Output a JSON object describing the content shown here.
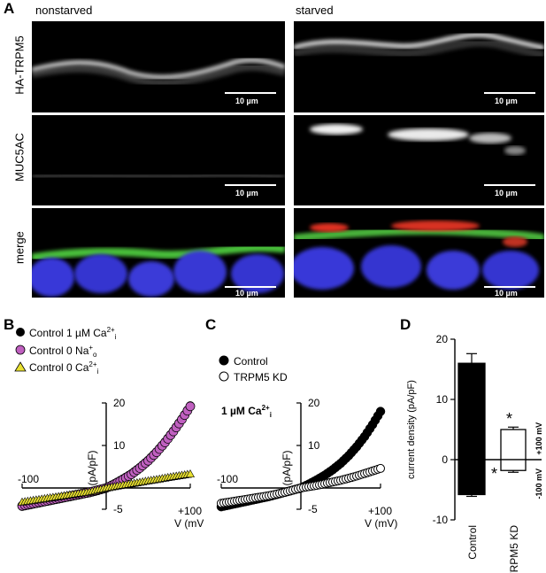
{
  "panel_A": {
    "letter": "A",
    "columns": [
      "nonstarved",
      "starved"
    ],
    "rows": [
      "HA-TRPM5",
      "MUC5AC",
      "merge"
    ],
    "scale_label": "10 µm"
  },
  "panel_B": {
    "letter": "B",
    "legend": [
      {
        "label": "Control 1 µM Ca",
        "sup": "2+",
        "sub": "i",
        "marker": "filled-black-circle",
        "color": "#000000"
      },
      {
        "label": "Control 0 Na",
        "sup": "+",
        "sub": "o",
        "marker": "magenta-circle",
        "color": "#c060c0"
      },
      {
        "label": "Control 0 Ca",
        "sup": "2+",
        "sub": "i",
        "marker": "yellow-triangle",
        "color": "#e8e030"
      }
    ],
    "ylabel": "I (pA/pF)",
    "xlabel": "V (mV)",
    "xmin_label": "-100",
    "xmax_label": "+100",
    "yticks": [
      "20",
      "10",
      "-5"
    ]
  },
  "panel_C": {
    "letter": "C",
    "legend": [
      {
        "label": "Control",
        "marker": "filled-black-circle"
      },
      {
        "label": "TRPM5 KD",
        "marker": "open-circle"
      }
    ],
    "annotation": "1 µM Ca",
    "annotation_sup": "2+",
    "annotation_sub": "i",
    "ylabel": "I (pA/pF)",
    "xlabel": "V (mV)",
    "xmin_label": "-100",
    "xmax_label": "+100",
    "yticks": [
      "20",
      "10",
      "-5"
    ]
  },
  "panel_D": {
    "letter": "D",
    "ylabel": "current density (pA/pF)",
    "yticks": [
      "20",
      "10",
      "0",
      "-10"
    ],
    "side_labels": [
      "+100 mV",
      "-100 mV"
    ],
    "star": "*"
  },
  "chart_data": [
    {
      "type": "scatter",
      "xlim": [
        -100,
        100
      ],
      "ylim": [
        -5,
        20
      ],
      "series": [
        {
          "name": "Control 1 µM Ca2+i",
          "x": [
            -100,
            -90,
            -80,
            -70,
            -60,
            -50,
            -40,
            -30,
            -20,
            -10,
            0,
            10,
            20,
            30,
            40,
            50,
            60,
            70,
            80,
            90,
            100
          ],
          "y": [
            -4.3,
            -3.9,
            -3.5,
            -3.1,
            -2.7,
            -2.3,
            -1.9,
            -1.5,
            -1.1,
            -0.6,
            0,
            1,
            2.1,
            3.3,
            4.8,
            6.5,
            8.5,
            10.8,
            13.4,
            16.2,
            19.3
          ]
        },
        {
          "name": "Control 0 Na+o",
          "x": [
            -100,
            -90,
            -80,
            -70,
            -60,
            -50,
            -40,
            -30,
            -20,
            -10,
            0,
            10,
            20,
            30,
            40,
            50,
            60,
            70,
            80,
            90,
            100
          ],
          "y": [
            -4.2,
            -3.8,
            -3.4,
            -3.0,
            -2.6,
            -2.2,
            -1.8,
            -1.4,
            -1.0,
            -0.5,
            0,
            0.9,
            2,
            3.2,
            4.7,
            6.4,
            8.4,
            10.7,
            13.3,
            16.1,
            19.2
          ]
        },
        {
          "name": "Control 0 Ca2+i",
          "x": [
            -100,
            -90,
            -80,
            -70,
            -60,
            -50,
            -40,
            -30,
            -20,
            -10,
            0,
            10,
            20,
            30,
            40,
            50,
            60,
            70,
            80,
            90,
            100
          ],
          "y": [
            -3.3,
            -3.0,
            -2.7,
            -2.4,
            -2.1,
            -1.8,
            -1.5,
            -1.2,
            -0.9,
            -0.45,
            0,
            0.35,
            0.7,
            1.0,
            1.35,
            1.7,
            2.0,
            2.35,
            2.7,
            3.0,
            3.3
          ]
        }
      ]
    },
    {
      "type": "scatter",
      "xlim": [
        -100,
        100
      ],
      "ylim": [
        -5,
        20
      ],
      "series": [
        {
          "name": "Control",
          "x": [
            -100,
            -90,
            -80,
            -70,
            -60,
            -50,
            -40,
            -30,
            -20,
            -10,
            0,
            10,
            20,
            30,
            40,
            50,
            60,
            70,
            80,
            90,
            100
          ],
          "y": [
            -4.4,
            -4.0,
            -3.6,
            -3.2,
            -2.8,
            -2.4,
            -2.0,
            -1.5,
            -1.0,
            -0.5,
            0,
            0.9,
            1.9,
            3.0,
            4.3,
            5.8,
            7.6,
            9.7,
            12.1,
            14.9,
            18.0
          ]
        },
        {
          "name": "TRPM5 KD",
          "x": [
            -100,
            -90,
            -80,
            -70,
            -60,
            -50,
            -40,
            -30,
            -20,
            -10,
            0,
            10,
            20,
            30,
            40,
            50,
            60,
            70,
            80,
            90,
            100
          ],
          "y": [
            -3.6,
            -3.3,
            -3.0,
            -2.7,
            -2.4,
            -2.1,
            -1.8,
            -1.4,
            -1.0,
            -0.5,
            0,
            0.3,
            0.6,
            1.0,
            1.4,
            1.8,
            2.3,
            2.8,
            3.4,
            4.0,
            4.6
          ]
        }
      ]
    },
    {
      "type": "bar",
      "categories": [
        "Control",
        "TRPM5 KD"
      ],
      "ylim": [
        -10,
        20
      ],
      "series": [
        {
          "name": "+100 mV",
          "values": [
            16.0,
            5.0
          ],
          "errors": [
            1.6,
            0.4
          ]
        },
        {
          "name": "-100 mV",
          "values": [
            -5.8,
            -1.8
          ],
          "errors": [
            0.3,
            0.3
          ]
        }
      ]
    }
  ]
}
